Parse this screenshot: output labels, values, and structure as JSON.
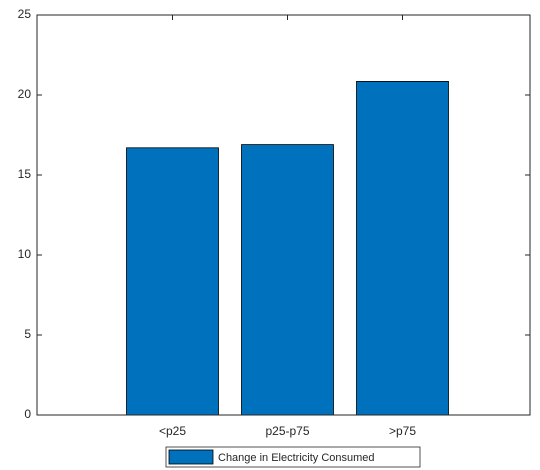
{
  "chart_data": {
    "type": "bar",
    "categories": [
      "<p25",
      "p25-p75",
      ">p75"
    ],
    "series": [
      {
        "name": "Change in Electricity Consumed",
        "color": "#0072bd",
        "values": [
          16.7,
          16.9,
          20.85
        ]
      }
    ],
    "ylim": [
      0,
      25
    ],
    "yticks": [
      0,
      5,
      10,
      15,
      20,
      25
    ],
    "grid": false,
    "legend": "bottom"
  }
}
